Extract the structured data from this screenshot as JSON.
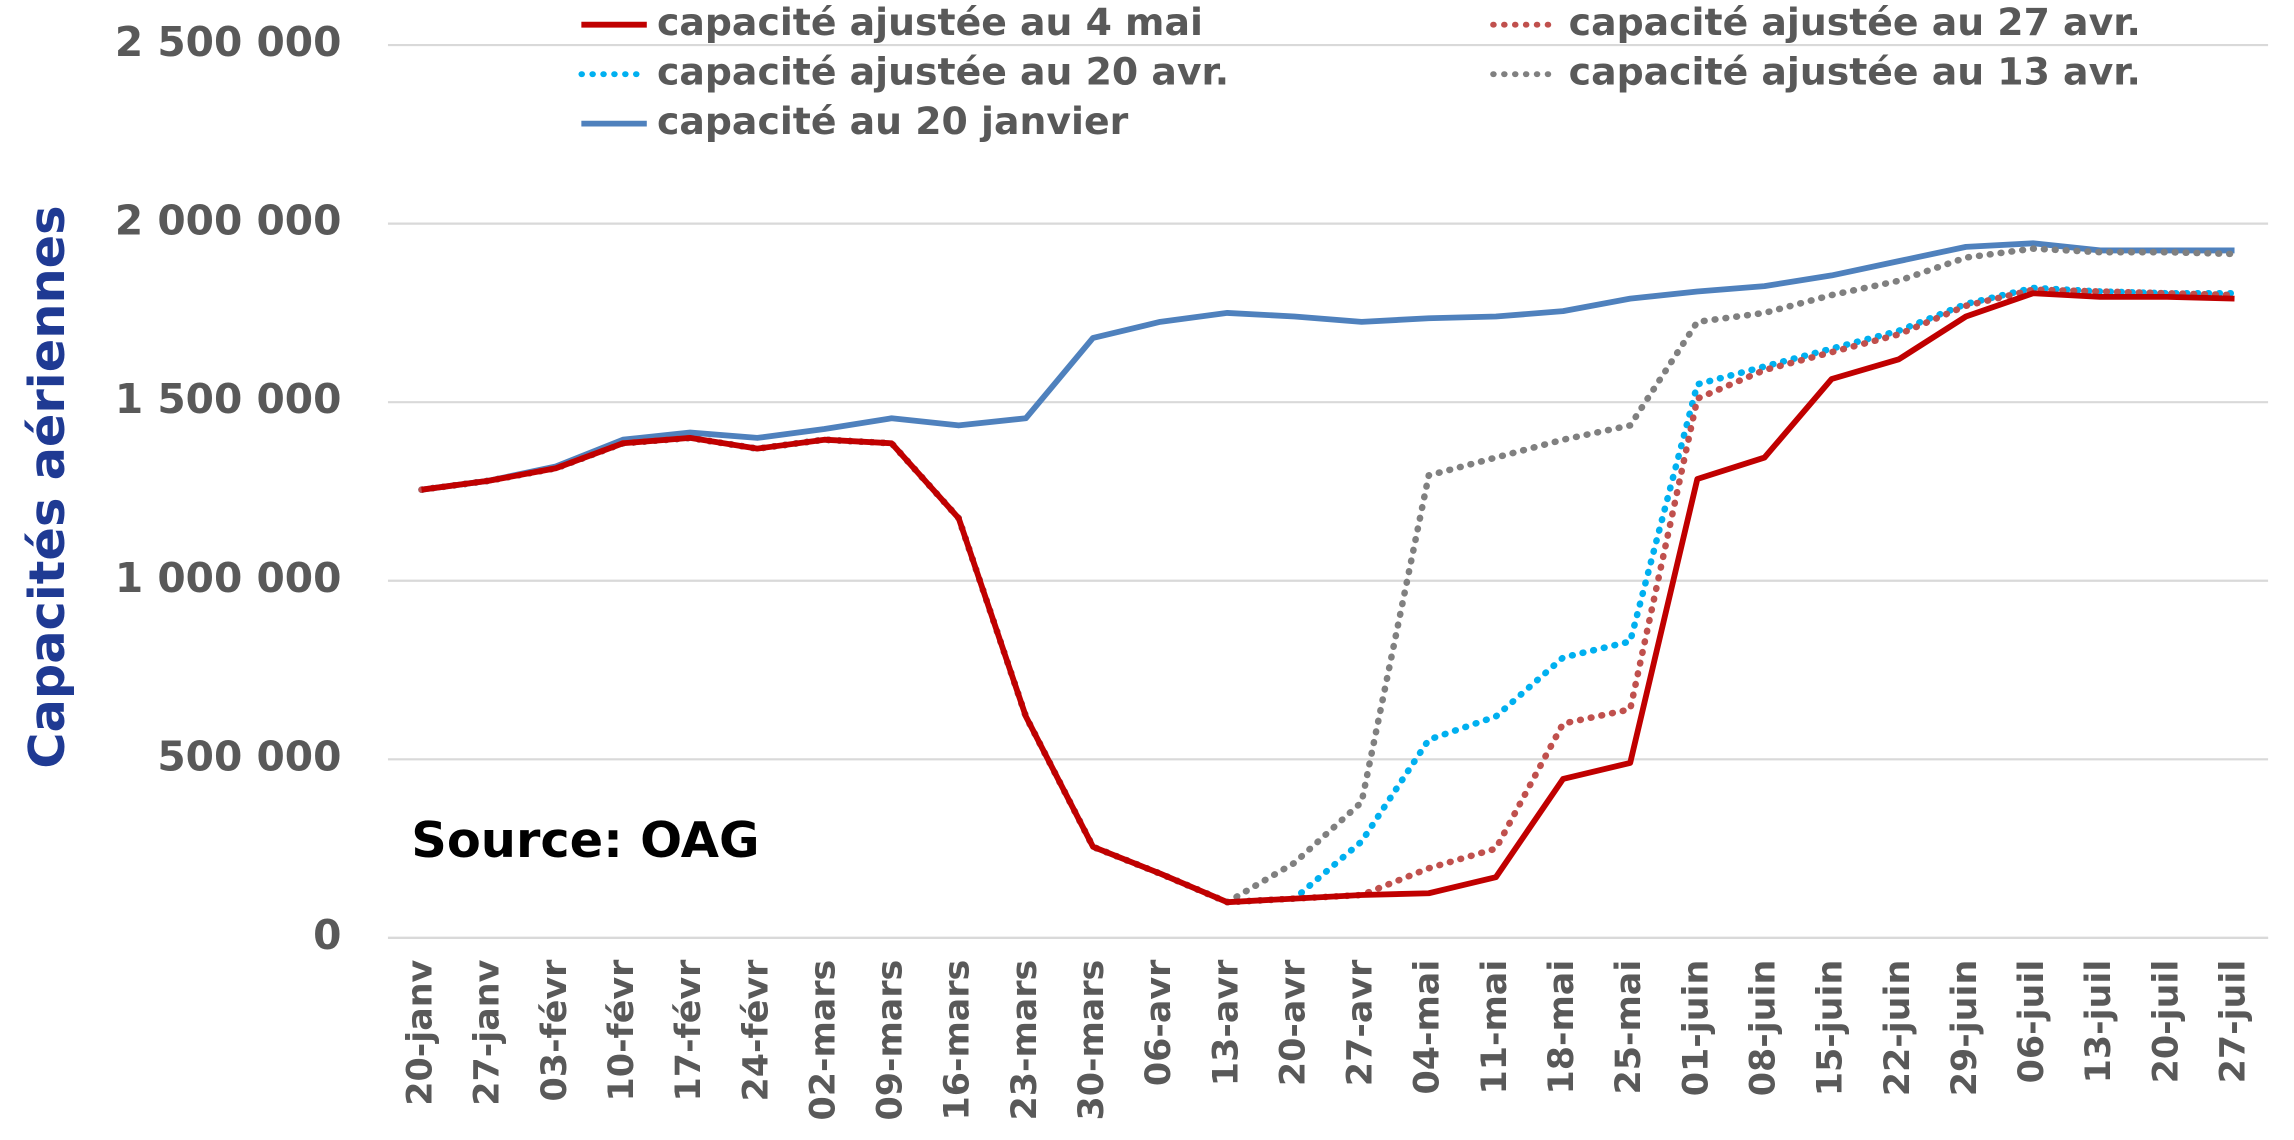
{
  "chart_data": {
    "type": "line",
    "y_label": "Capacités aériennes",
    "annotation": "Source: OAG",
    "categories": [
      "20-janv",
      "27-janv",
      "03-févr",
      "10-févr",
      "17-févr",
      "24-févr",
      "02-mars",
      "09-mars",
      "16-mars",
      "23-mars",
      "30-mars",
      "06-avr",
      "13-avr",
      "20-avr",
      "27-avr",
      "04-mai",
      "11-mai",
      "18-mai",
      "25-mai",
      "01-juin",
      "08-juin",
      "15-juin",
      "22-juin",
      "29-juin",
      "06-juil",
      "13-juil",
      "20-juil",
      "27-juil"
    ],
    "series": [
      {
        "name": "capacité ajustée au 4 mai",
        "color": "#c00000",
        "dotted": false,
        "values": [
          1255000,
          1280000,
          1315000,
          1385000,
          1400000,
          1370000,
          1395000,
          1385000,
          1175000,
          620000,
          255000,
          180000,
          100000,
          110000,
          120000,
          125000,
          170000,
          445000,
          490000,
          1285000,
          1345000,
          1565000,
          1620000,
          1740000,
          1805000,
          1795000,
          1795000,
          1790000
        ]
      },
      {
        "name": "capacité ajustée au 27 avr.",
        "color": "#c0504d",
        "dotted": true,
        "values": [
          1255000,
          1280000,
          1315000,
          1385000,
          1400000,
          1370000,
          1395000,
          1385000,
          1175000,
          620000,
          255000,
          180000,
          100000,
          110000,
          120000,
          195000,
          250000,
          600000,
          640000,
          1510000,
          1590000,
          1640000,
          1690000,
          1770000,
          1815000,
          1810000,
          1805000,
          1800000
        ]
      },
      {
        "name": "capacité ajustée au 20 avr.",
        "color": "#00b0f0",
        "dotted": true,
        "values": [
          1255000,
          1280000,
          1315000,
          1385000,
          1400000,
          1370000,
          1395000,
          1385000,
          1175000,
          620000,
          255000,
          180000,
          100000,
          110000,
          270000,
          555000,
          620000,
          785000,
          830000,
          1550000,
          1600000,
          1650000,
          1700000,
          1775000,
          1820000,
          1810000,
          1805000,
          1805000
        ]
      },
      {
        "name": "capacité ajustée au 13 avr.",
        "color": "#808080",
        "dotted": true,
        "values": [
          1255000,
          1280000,
          1315000,
          1385000,
          1400000,
          1370000,
          1395000,
          1385000,
          1175000,
          620000,
          255000,
          180000,
          100000,
          210000,
          380000,
          1295000,
          1345000,
          1395000,
          1435000,
          1725000,
          1750000,
          1800000,
          1840000,
          1905000,
          1930000,
          1920000,
          1920000,
          1915000
        ]
      },
      {
        "name": "capacité au 20 janvier",
        "color": "#4f81bd",
        "dotted": false,
        "values": [
          1255000,
          1280000,
          1320000,
          1395000,
          1415000,
          1400000,
          1425000,
          1455000,
          1435000,
          1455000,
          1680000,
          1725000,
          1750000,
          1740000,
          1725000,
          1735000,
          1740000,
          1755000,
          1790000,
          1810000,
          1825000,
          1855000,
          1895000,
          1935000,
          1945000,
          1925000,
          1925000,
          1925000
        ]
      }
    ],
    "ylim": [
      0,
      2500000
    ],
    "yticks": [
      0,
      {
        "value": 500000,
        "label": "500 000"
      },
      {
        "value": 1000000,
        "label": "1 000 000"
      },
      {
        "value": 1500000,
        "label": "1 500 000"
      },
      {
        "value": 2000000,
        "label": "2 000 000"
      },
      {
        "value": 2500000,
        "label": "2 500 000"
      }
    ],
    "grid": true
  }
}
